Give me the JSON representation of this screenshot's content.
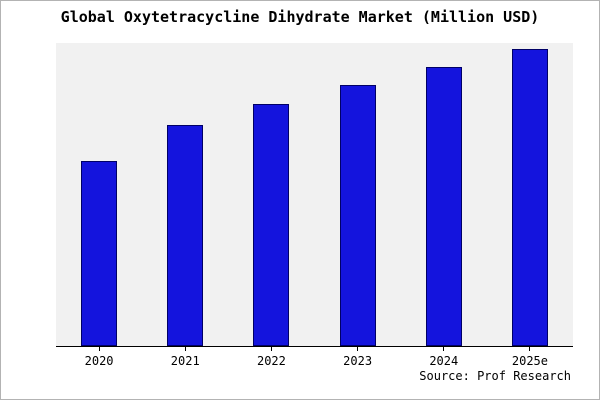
{
  "title": "Global Oxytetracycline Dihydrate Market (Million USD)",
  "source": "Source: Prof Research",
  "colors": {
    "bar": "#1414dd",
    "bar_edge": "#000066",
    "plot_bg": "#f1f1f1",
    "frame": "#b3b3b3"
  },
  "chart_data": {
    "type": "bar",
    "categories": [
      "2020",
      "2021",
      "2022",
      "2023",
      "2024",
      "2025e"
    ],
    "values": [
      61,
      73,
      80,
      86,
      92,
      98
    ],
    "title": "Global Oxytetracycline Dihydrate Market (Million USD)",
    "xlabel": "",
    "ylabel": "",
    "ylim": [
      0,
      100
    ],
    "grid": false,
    "legend": null,
    "note": "y-axis unlabeled in source image; values are relative heights"
  }
}
